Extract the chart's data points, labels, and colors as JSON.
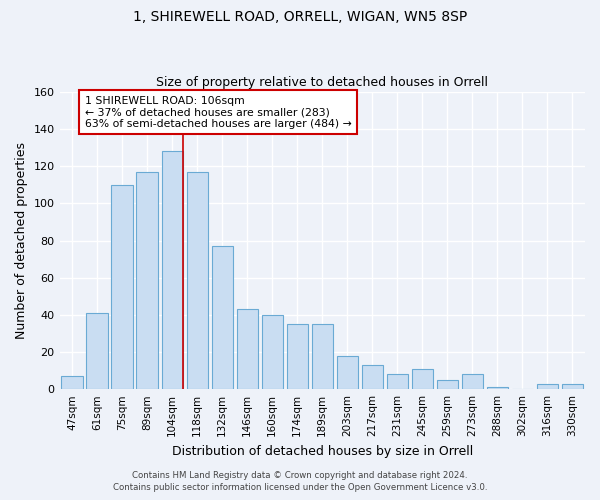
{
  "title1": "1, SHIREWELL ROAD, ORRELL, WIGAN, WN5 8SP",
  "title2": "Size of property relative to detached houses in Orrell",
  "xlabel": "Distribution of detached houses by size in Orrell",
  "ylabel": "Number of detached properties",
  "footnote1": "Contains HM Land Registry data © Crown copyright and database right 2024.",
  "footnote2": "Contains public sector information licensed under the Open Government Licence v3.0.",
  "categories": [
    "47sqm",
    "61sqm",
    "75sqm",
    "89sqm",
    "104sqm",
    "118sqm",
    "132sqm",
    "146sqm",
    "160sqm",
    "174sqm",
    "189sqm",
    "203sqm",
    "217sqm",
    "231sqm",
    "245sqm",
    "259sqm",
    "273sqm",
    "288sqm",
    "302sqm",
    "316sqm",
    "330sqm"
  ],
  "values": [
    7,
    41,
    110,
    117,
    128,
    117,
    77,
    43,
    40,
    35,
    35,
    18,
    13,
    8,
    11,
    5,
    8,
    1,
    0,
    3,
    3
  ],
  "bar_color": "#c9ddf2",
  "bar_edge_color": "#6aaad4",
  "background_color": "#eef2f9",
  "grid_color": "#ffffff",
  "vline_x": 4.42,
  "vline_color": "#cc0000",
  "annotation_text": "1 SHIREWELL ROAD: 106sqm\n← 37% of detached houses are smaller (283)\n63% of semi-detached houses are larger (484) →",
  "annotation_box_color": "#ffffff",
  "annotation_box_edge": "#cc0000",
  "ylim": [
    0,
    160
  ],
  "yticks": [
    0,
    20,
    40,
    60,
    80,
    100,
    120,
    140,
    160
  ]
}
